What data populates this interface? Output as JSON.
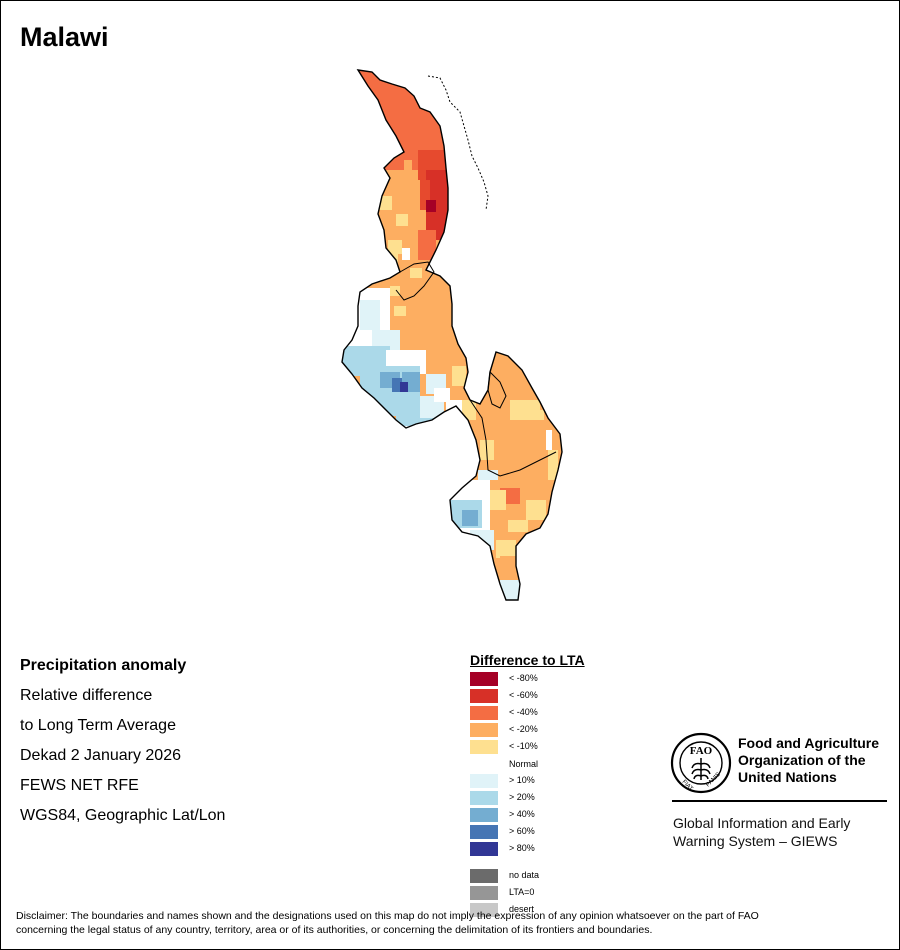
{
  "title": "Malawi",
  "info": {
    "line1": "Precipitation anomaly",
    "line2": "Relative difference",
    "line3": "to Long Term Average",
    "line4": "Dekad 2 January 2026",
    "line5": "FEWS NET RFE",
    "line6": "WGS84, Geographic Lat/Lon"
  },
  "legend": {
    "title": "Difference to LTA",
    "dry": [
      {
        "label": "< -80%",
        "color": "#a50026"
      },
      {
        "label": "< -60%",
        "color": "#d73027"
      },
      {
        "label": "< -40%",
        "color": "#f46d43"
      },
      {
        "label": "< -20%",
        "color": "#fdae61"
      },
      {
        "label": "< -10%",
        "color": "#fee090"
      }
    ],
    "normal": "Normal",
    "wet": [
      {
        "label": "> 10%",
        "color": "#e0f3f8"
      },
      {
        "label": "> 20%",
        "color": "#abd9e9"
      },
      {
        "label": "> 40%",
        "color": "#74add1"
      },
      {
        "label": "> 60%",
        "color": "#4575b4"
      },
      {
        "label": "> 80%",
        "color": "#313695"
      }
    ],
    "other": [
      {
        "label": "no data",
        "color": "#6b6b6b"
      },
      {
        "label": "LTA=0",
        "color": "#969696"
      },
      {
        "label": "desert",
        "color": "#c8c8c8"
      }
    ]
  },
  "fao": {
    "name_line1": "Food and Agriculture",
    "name_line2": "Organization of the",
    "name_line3": "United Nations",
    "emblem_top": "FAO",
    "emblem_left": "FIAT",
    "emblem_right": "PANIS",
    "giews_line1": "Global Information and Early",
    "giews_line2": "Warning System – GIEWS"
  },
  "disclaimer": {
    "line1": "Disclaimer: The boundaries and names shown and the designations used on this map do not imply the expression of any opinion whatsoever on the part of FAO",
    "line2": "concerning the legal status of any country, territory, area or of its authorities, or concerning the delimitation of its frontiers and boundaries."
  }
}
